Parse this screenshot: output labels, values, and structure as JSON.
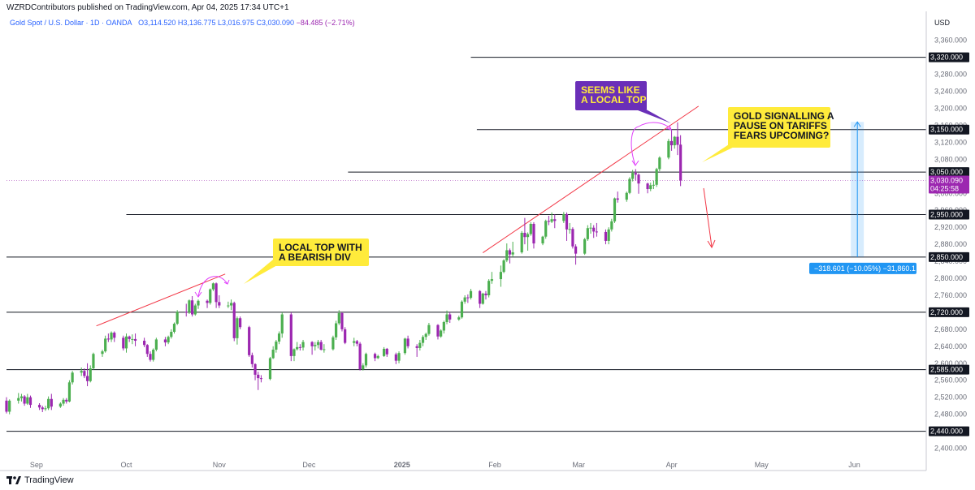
{
  "header": {
    "published": "WZRDContributors published on TradingView.com, Apr 04, 2025 17:34 UTC+1",
    "symbol": "Gold Spot / U.S. Dollar · 1D · OANDA",
    "ohlc": "O3,114.520  H3,136.775  L3,016.975  C3,030.090",
    "change": "−84.485 (−2.71%)",
    "currency": "USD"
  },
  "footer": {
    "brand": "TradingView"
  },
  "colors": {
    "bull": "#4caf50",
    "bear": "#9c27b0",
    "line": "#131722",
    "trend": "#f23645",
    "note_yellow": "#ffeb3b",
    "note_purple": "#6a2fb8",
    "measure": "#2196f3"
  },
  "chart_data": {
    "type": "candlestick",
    "ylim": [
      2380,
      3390
    ],
    "y_ticks": [
      "3,360.000",
      "3,320.000",
      "3,280.000",
      "3,240.000",
      "3,200.000",
      "3,160.000",
      "3,120.000",
      "3,080.000",
      "3,040.000",
      "3,000.000",
      "2,960.000",
      "2,920.000",
      "2,880.000",
      "2,840.000",
      "2,800.000",
      "2,760.000",
      "2,720.000",
      "2,680.000",
      "2,640.000",
      "2,600.000",
      "2,560.000",
      "2,520.000",
      "2,480.000",
      "2,440.000",
      "2,400.000"
    ],
    "x_ticks": [
      {
        "label": "Sep",
        "date": "2024-09-01"
      },
      {
        "label": "Oct",
        "date": "2024-10-01"
      },
      {
        "label": "Nov",
        "date": "2024-11-01"
      },
      {
        "label": "Dec",
        "date": "2024-12-01"
      },
      {
        "label": "2025",
        "date": "2025-01-01"
      },
      {
        "label": "Feb",
        "date": "2025-02-01"
      },
      {
        "label": "Mar",
        "date": "2025-03-01"
      },
      {
        "label": "Apr",
        "date": "2025-04-01"
      },
      {
        "label": "May",
        "date": "2025-05-01"
      },
      {
        "label": "Jun",
        "date": "2025-06-01"
      }
    ],
    "x_start": "2024-08-22",
    "x_end": "2025-06-25",
    "horizontal_levels": [
      {
        "value": 3320,
        "label": "3,320.000",
        "from": "2025-01-24"
      },
      {
        "value": 3150,
        "label": "3,150.000",
        "from": "2025-01-26"
      },
      {
        "value": 3050,
        "label": "3,050.000",
        "from": "2024-12-14"
      },
      {
        "value": 2950,
        "label": "2,950.000",
        "from": "2024-10-01"
      },
      {
        "value": 2850,
        "label": "2,850.000",
        "from": "2024-08-22"
      },
      {
        "value": 2720,
        "label": "2,720.000",
        "from": "2024-08-22"
      },
      {
        "value": 2585,
        "label": "2,585.000",
        "from": "2024-08-22"
      },
      {
        "value": 2440,
        "label": "2,440.000",
        "from": "2024-08-22"
      }
    ],
    "last_price": {
      "value": 3030.09,
      "label": "3,030.090",
      "countdown": "04:25:58"
    },
    "measure": {
      "from": 3168,
      "to": 2850,
      "date": "2025-06-02",
      "label": "−318.601 (−10.05%) −31,860.1"
    },
    "trendlines": [
      {
        "d1": "2024-09-21",
        "v1": 2688,
        "d2": "2024-11-03",
        "v2": 2810
      },
      {
        "d1": "2025-01-28",
        "v1": 2860,
        "d2": "2025-04-10",
        "v2": 3205
      }
    ],
    "candles": [
      [
        "2024-08-22",
        2512,
        2486,
        2520,
        2482
      ],
      [
        "2024-08-23",
        2486,
        2512,
        2515,
        2480
      ],
      [
        "2024-08-26",
        2512,
        2518,
        2530,
        2505
      ],
      [
        "2024-08-27",
        2518,
        2522,
        2528,
        2510
      ],
      [
        "2024-08-28",
        2522,
        2505,
        2525,
        2500
      ],
      [
        "2024-08-29",
        2505,
        2520,
        2528,
        2502
      ],
      [
        "2024-08-30",
        2520,
        2502,
        2524,
        2495
      ],
      [
        "2024-09-02",
        2502,
        2496,
        2506,
        2490
      ],
      [
        "2024-09-03",
        2496,
        2492,
        2500,
        2485
      ],
      [
        "2024-09-04",
        2492,
        2494,
        2500,
        2488
      ],
      [
        "2024-09-05",
        2494,
        2516,
        2522,
        2490
      ],
      [
        "2024-09-06",
        2516,
        2498,
        2528,
        2490
      ],
      [
        "2024-09-09",
        2498,
        2505,
        2508,
        2495
      ],
      [
        "2024-09-10",
        2505,
        2514,
        2518,
        2500
      ],
      [
        "2024-09-11",
        2514,
        2510,
        2518,
        2505
      ],
      [
        "2024-09-12",
        2510,
        2555,
        2560,
        2508
      ],
      [
        "2024-09-13",
        2555,
        2578,
        2582,
        2550
      ],
      [
        "2024-09-16",
        2578,
        2582,
        2590,
        2570
      ],
      [
        "2024-09-17",
        2582,
        2570,
        2588,
        2565
      ],
      [
        "2024-09-18",
        2570,
        2558,
        2600,
        2546
      ],
      [
        "2024-09-19",
        2558,
        2588,
        2595,
        2555
      ],
      [
        "2024-09-20",
        2588,
        2622,
        2625,
        2585
      ],
      [
        "2024-09-23",
        2622,
        2628,
        2632,
        2615
      ],
      [
        "2024-09-24",
        2628,
        2658,
        2665,
        2625
      ],
      [
        "2024-09-25",
        2658,
        2656,
        2670,
        2650
      ],
      [
        "2024-09-26",
        2656,
        2672,
        2675,
        2650
      ],
      [
        "2024-09-27",
        2672,
        2660,
        2675,
        2650
      ],
      [
        "2024-09-30",
        2660,
        2635,
        2665,
        2630
      ],
      [
        "2024-10-01",
        2635,
        2663,
        2670,
        2625
      ],
      [
        "2024-10-02",
        2663,
        2657,
        2665,
        2650
      ],
      [
        "2024-10-03",
        2657,
        2657,
        2668,
        2645
      ],
      [
        "2024-10-04",
        2657,
        2653,
        2670,
        2640
      ],
      [
        "2024-10-07",
        2653,
        2643,
        2660,
        2638
      ],
      [
        "2024-10-08",
        2643,
        2622,
        2645,
        2615
      ],
      [
        "2024-10-09",
        2622,
        2608,
        2628,
        2604
      ],
      [
        "2024-10-10",
        2608,
        2632,
        2635,
        2604
      ],
      [
        "2024-10-11",
        2632,
        2656,
        2660,
        2628
      ],
      [
        "2024-10-14",
        2656,
        2649,
        2662,
        2640
      ],
      [
        "2024-10-15",
        2649,
        2662,
        2665,
        2645
      ],
      [
        "2024-10-16",
        2662,
        2674,
        2680,
        2658
      ],
      [
        "2024-10-17",
        2674,
        2693,
        2696,
        2670
      ],
      [
        "2024-10-18",
        2693,
        2721,
        2725,
        2690
      ],
      [
        "2024-10-21",
        2721,
        2720,
        2740,
        2710
      ],
      [
        "2024-10-22",
        2720,
        2748,
        2750,
        2716
      ],
      [
        "2024-10-23",
        2748,
        2715,
        2758,
        2710
      ],
      [
        "2024-10-24",
        2715,
        2736,
        2740,
        2712
      ],
      [
        "2024-10-25",
        2736,
        2747,
        2750,
        2728
      ],
      [
        "2024-10-28",
        2747,
        2742,
        2750,
        2730
      ],
      [
        "2024-10-29",
        2742,
        2774,
        2776,
        2738
      ],
      [
        "2024-10-30",
        2774,
        2788,
        2790,
        2770
      ],
      [
        "2024-10-31",
        2788,
        2744,
        2790,
        2730
      ],
      [
        "2024-11-01",
        2744,
        2736,
        2760,
        2730
      ],
      [
        "2024-11-04",
        2736,
        2736,
        2745,
        2730
      ],
      [
        "2024-11-05",
        2736,
        2742,
        2750,
        2725
      ],
      [
        "2024-11-06",
        2742,
        2659,
        2745,
        2652
      ],
      [
        "2024-11-07",
        2659,
        2706,
        2710,
        2644
      ],
      [
        "2024-11-08",
        2706,
        2685,
        2710,
        2680
      ],
      [
        "2024-11-11",
        2685,
        2619,
        2688,
        2615
      ],
      [
        "2024-11-12",
        2619,
        2598,
        2625,
        2590
      ],
      [
        "2024-11-13",
        2598,
        2573,
        2600,
        2560
      ],
      [
        "2024-11-14",
        2573,
        2565,
        2580,
        2537
      ],
      [
        "2024-11-15",
        2565,
        2563,
        2572,
        2555
      ],
      [
        "2024-11-18",
        2563,
        2612,
        2615,
        2560
      ],
      [
        "2024-11-19",
        2612,
        2632,
        2640,
        2610
      ],
      [
        "2024-11-20",
        2632,
        2651,
        2655,
        2625
      ],
      [
        "2024-11-21",
        2651,
        2670,
        2675,
        2645
      ],
      [
        "2024-11-22",
        2670,
        2715,
        2720,
        2660
      ],
      [
        "2024-11-25",
        2715,
        2617,
        2720,
        2605
      ],
      [
        "2024-11-26",
        2617,
        2633,
        2635,
        2605
      ],
      [
        "2024-11-27",
        2633,
        2638,
        2650,
        2630
      ],
      [
        "2024-11-28",
        2638,
        2637,
        2645,
        2630
      ],
      [
        "2024-11-29",
        2637,
        2650,
        2655,
        2630
      ],
      [
        "2024-12-02",
        2650,
        2640,
        2652,
        2620
      ],
      [
        "2024-12-03",
        2640,
        2643,
        2650,
        2630
      ],
      [
        "2024-12-04",
        2643,
        2650,
        2655,
        2635
      ],
      [
        "2024-12-05",
        2650,
        2632,
        2655,
        2630
      ],
      [
        "2024-12-06",
        2632,
        2633,
        2645,
        2625
      ],
      [
        "2024-12-09",
        2633,
        2661,
        2665,
        2630
      ],
      [
        "2024-12-10",
        2661,
        2694,
        2700,
        2655
      ],
      [
        "2024-12-11",
        2694,
        2718,
        2725,
        2690
      ],
      [
        "2024-12-12",
        2718,
        2680,
        2720,
        2675
      ],
      [
        "2024-12-13",
        2680,
        2648,
        2685,
        2645
      ],
      [
        "2024-12-16",
        2648,
        2652,
        2660,
        2640
      ],
      [
        "2024-12-17",
        2652,
        2646,
        2655,
        2640
      ],
      [
        "2024-12-18",
        2646,
        2586,
        2650,
        2583
      ],
      [
        "2024-12-19",
        2586,
        2595,
        2600,
        2583
      ],
      [
        "2024-12-20",
        2595,
        2622,
        2625,
        2590
      ],
      [
        "2024-12-23",
        2622,
        2612,
        2625,
        2605
      ],
      [
        "2024-12-24",
        2612,
        2617,
        2620,
        2610
      ],
      [
        "2024-12-26",
        2617,
        2634,
        2638,
        2615
      ],
      [
        "2024-12-27",
        2634,
        2621,
        2636,
        2615
      ],
      [
        "2024-12-30",
        2621,
        2606,
        2625,
        2598
      ],
      [
        "2024-12-31",
        2606,
        2624,
        2628,
        2600
      ],
      [
        "2025-01-02",
        2624,
        2658,
        2660,
        2620
      ],
      [
        "2025-01-03",
        2658,
        2640,
        2665,
        2635
      ],
      [
        "2025-01-06",
        2640,
        2636,
        2645,
        2615
      ],
      [
        "2025-01-07",
        2636,
        2648,
        2655,
        2630
      ],
      [
        "2025-01-08",
        2648,
        2662,
        2666,
        2640
      ],
      [
        "2025-01-09",
        2662,
        2669,
        2672,
        2655
      ],
      [
        "2025-01-10",
        2669,
        2690,
        2695,
        2665
      ],
      [
        "2025-01-13",
        2690,
        2663,
        2692,
        2656
      ],
      [
        "2025-01-14",
        2663,
        2677,
        2680,
        2660
      ],
      [
        "2025-01-15",
        2677,
        2697,
        2700,
        2670
      ],
      [
        "2025-01-16",
        2697,
        2715,
        2724,
        2692
      ],
      [
        "2025-01-17",
        2715,
        2703,
        2720,
        2695
      ],
      [
        "2025-01-20",
        2703,
        2708,
        2712,
        2700
      ],
      [
        "2025-01-21",
        2708,
        2745,
        2748,
        2705
      ],
      [
        "2025-01-22",
        2745,
        2755,
        2760,
        2740
      ],
      [
        "2025-01-23",
        2755,
        2754,
        2762,
        2742
      ],
      [
        "2025-01-24",
        2754,
        2770,
        2775,
        2750
      ],
      [
        "2025-01-27",
        2770,
        2740,
        2772,
        2730
      ],
      [
        "2025-01-28",
        2740,
        2764,
        2766,
        2738
      ],
      [
        "2025-01-29",
        2764,
        2760,
        2770,
        2750
      ],
      [
        "2025-01-30",
        2760,
        2794,
        2798,
        2755
      ],
      [
        "2025-01-31",
        2794,
        2798,
        2815,
        2787
      ],
      [
        "2025-02-03",
        2798,
        2815,
        2830,
        2780
      ],
      [
        "2025-02-04",
        2815,
        2842,
        2845,
        2812
      ],
      [
        "2025-02-05",
        2842,
        2866,
        2882,
        2838
      ],
      [
        "2025-02-06",
        2866,
        2856,
        2870,
        2835
      ],
      [
        "2025-02-07",
        2856,
        2861,
        2886,
        2850
      ],
      [
        "2025-02-10",
        2861,
        2907,
        2911,
        2858
      ],
      [
        "2025-02-11",
        2907,
        2897,
        2942,
        2880
      ],
      [
        "2025-02-12",
        2897,
        2904,
        2908,
        2865
      ],
      [
        "2025-02-13",
        2904,
        2928,
        2932,
        2900
      ],
      [
        "2025-02-14",
        2928,
        2882,
        2932,
        2870
      ],
      [
        "2025-02-17",
        2882,
        2898,
        2900,
        2878
      ],
      [
        "2025-02-18",
        2898,
        2935,
        2938,
        2893
      ],
      [
        "2025-02-19",
        2935,
        2933,
        2947,
        2925
      ],
      [
        "2025-02-20",
        2933,
        2939,
        2955,
        2930
      ],
      [
        "2025-02-21",
        2939,
        2935,
        2950,
        2918
      ],
      [
        "2025-02-24",
        2935,
        2951,
        2956,
        2930
      ],
      [
        "2025-02-25",
        2951,
        2915,
        2955,
        2888
      ],
      [
        "2025-02-26",
        2915,
        2916,
        2930,
        2905
      ],
      [
        "2025-02-27",
        2916,
        2875,
        2920,
        2870
      ],
      [
        "2025-02-28",
        2875,
        2858,
        2880,
        2832
      ],
      [
        "2025-03-03",
        2858,
        2892,
        2895,
        2855
      ],
      [
        "2025-03-04",
        2892,
        2918,
        2925,
        2888
      ],
      [
        "2025-03-05",
        2918,
        2919,
        2930,
        2905
      ],
      [
        "2025-03-06",
        2919,
        2910,
        2925,
        2895
      ],
      [
        "2025-03-07",
        2910,
        2909,
        2930,
        2898
      ],
      [
        "2025-03-10",
        2909,
        2888,
        2915,
        2880
      ],
      [
        "2025-03-11",
        2888,
        2915,
        2920,
        2880
      ],
      [
        "2025-03-12",
        2915,
        2934,
        2940,
        2910
      ],
      [
        "2025-03-13",
        2934,
        2988,
        2990,
        2930
      ],
      [
        "2025-03-14",
        2988,
        2985,
        3004,
        2978
      ],
      [
        "2025-03-17",
        2985,
        3001,
        3004,
        2980
      ],
      [
        "2025-03-18",
        3001,
        3034,
        3038,
        2998
      ],
      [
        "2025-03-19",
        3034,
        3048,
        3055,
        3028
      ],
      [
        "2025-03-20",
        3048,
        3044,
        3057,
        3030
      ],
      [
        "2025-03-21",
        3044,
        3023,
        3047,
        2999
      ],
      [
        "2025-03-24",
        3023,
        3010,
        3025,
        3000
      ],
      [
        "2025-03-25",
        3010,
        3019,
        3025,
        3005
      ],
      [
        "2025-03-26",
        3019,
        3020,
        3030,
        3010
      ],
      [
        "2025-03-27",
        3020,
        3057,
        3060,
        3015
      ],
      [
        "2025-03-28",
        3057,
        3084,
        3087,
        3052
      ],
      [
        "2025-03-31",
        3084,
        3123,
        3128,
        3080
      ],
      [
        "2025-04-01",
        3123,
        3113,
        3149,
        3100
      ],
      [
        "2025-04-02",
        3113,
        3133,
        3135,
        3105
      ],
      [
        "2025-04-03",
        3133,
        3114,
        3167,
        3090
      ],
      [
        "2025-04-04",
        3114.52,
        3030.09,
        3136.775,
        3016.975
      ]
    ]
  },
  "annotations": [
    {
      "text": [
        "LOCAL TOP WITH",
        "A BEARISH DIV"
      ],
      "style": "yellow"
    },
    {
      "text": [
        "SEEMS LIKE",
        "A LOCAL TOP"
      ],
      "style": "purple"
    },
    {
      "text": [
        "GOLD SIGNALLING A",
        "PAUSE ON TARIFFS",
        "FEARS UPCOMING?"
      ],
      "style": "yellow"
    }
  ]
}
